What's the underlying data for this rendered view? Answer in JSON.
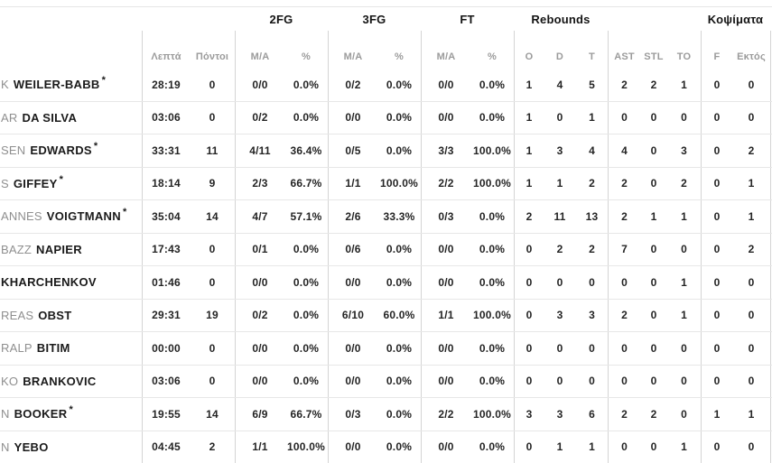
{
  "table": {
    "group_headers": [
      {
        "label": "2FG"
      },
      {
        "label": "3FG"
      },
      {
        "label": "FT"
      },
      {
        "label": "Rebounds"
      },
      {
        "label": "Κοψίματα"
      }
    ],
    "sub_headers": {
      "minutes": "Λεπτά",
      "points": "Πόντοι",
      "fg2_ma": "M/A",
      "fg2_pct": "%",
      "fg3_ma": "M/A",
      "fg3_pct": "%",
      "ft_ma": "M/A",
      "ft_pct": "%",
      "reb_o": "O",
      "reb_d": "D",
      "reb_t": "T",
      "ast": "AST",
      "stl": "STL",
      "to": "TO",
      "f": "F",
      "ektos": "Εκτός"
    },
    "rows": [
      {
        "prefix": "K",
        "surname": "WEILER-BABB",
        "star": "*",
        "min": "28:19",
        "pts": "0",
        "fg2": "0/0",
        "fg2pct": "0.0%",
        "fg3": "0/2",
        "fg3pct": "0.0%",
        "ft": "0/0",
        "ftpct": "0.0%",
        "o": "1",
        "d": "4",
        "t": "5",
        "ast": "2",
        "stl": "2",
        "to": "1",
        "f": "0",
        "ektos": "0"
      },
      {
        "prefix": "AR",
        "surname": "DA SILVA",
        "star": "",
        "min": "03:06",
        "pts": "0",
        "fg2": "0/2",
        "fg2pct": "0.0%",
        "fg3": "0/0",
        "fg3pct": "0.0%",
        "ft": "0/0",
        "ftpct": "0.0%",
        "o": "1",
        "d": "0",
        "t": "1",
        "ast": "0",
        "stl": "0",
        "to": "0",
        "f": "0",
        "ektos": "0"
      },
      {
        "prefix": "SEN",
        "surname": "EDWARDS",
        "star": "*",
        "min": "33:31",
        "pts": "11",
        "fg2": "4/11",
        "fg2pct": "36.4%",
        "fg3": "0/5",
        "fg3pct": "0.0%",
        "ft": "3/3",
        "ftpct": "100.0%",
        "o": "1",
        "d": "3",
        "t": "4",
        "ast": "4",
        "stl": "0",
        "to": "3",
        "f": "0",
        "ektos": "2"
      },
      {
        "prefix": "S",
        "surname": "GIFFEY",
        "star": "*",
        "min": "18:14",
        "pts": "9",
        "fg2": "2/3",
        "fg2pct": "66.7%",
        "fg3": "1/1",
        "fg3pct": "100.0%",
        "ft": "2/2",
        "ftpct": "100.0%",
        "o": "1",
        "d": "1",
        "t": "2",
        "ast": "2",
        "stl": "0",
        "to": "2",
        "f": "0",
        "ektos": "1"
      },
      {
        "prefix": "ANNES",
        "surname": "VOIGTMANN",
        "star": "*",
        "min": "35:04",
        "pts": "14",
        "fg2": "4/7",
        "fg2pct": "57.1%",
        "fg3": "2/6",
        "fg3pct": "33.3%",
        "ft": "0/3",
        "ftpct": "0.0%",
        "o": "2",
        "d": "11",
        "t": "13",
        "ast": "2",
        "stl": "1",
        "to": "1",
        "f": "0",
        "ektos": "1"
      },
      {
        "prefix": "BAZZ",
        "surname": "NAPIER",
        "star": "",
        "min": "17:43",
        "pts": "0",
        "fg2": "0/1",
        "fg2pct": "0.0%",
        "fg3": "0/6",
        "fg3pct": "0.0%",
        "ft": "0/0",
        "ftpct": "0.0%",
        "o": "0",
        "d": "2",
        "t": "2",
        "ast": "7",
        "stl": "0",
        "to": "0",
        "f": "0",
        "ektos": "2"
      },
      {
        "prefix": "",
        "surname": "KHARCHENKOV",
        "star": "",
        "min": "01:46",
        "pts": "0",
        "fg2": "0/0",
        "fg2pct": "0.0%",
        "fg3": "0/0",
        "fg3pct": "0.0%",
        "ft": "0/0",
        "ftpct": "0.0%",
        "o": "0",
        "d": "0",
        "t": "0",
        "ast": "0",
        "stl": "0",
        "to": "1",
        "f": "0",
        "ektos": "0"
      },
      {
        "prefix": "REAS",
        "surname": "OBST",
        "star": "",
        "min": "29:31",
        "pts": "19",
        "fg2": "0/2",
        "fg2pct": "0.0%",
        "fg3": "6/10",
        "fg3pct": "60.0%",
        "ft": "1/1",
        "ftpct": "100.0%",
        "o": "0",
        "d": "3",
        "t": "3",
        "ast": "2",
        "stl": "0",
        "to": "1",
        "f": "0",
        "ektos": "0"
      },
      {
        "prefix": "RALP",
        "surname": "BITIM",
        "star": "",
        "min": "00:00",
        "pts": "0",
        "fg2": "0/0",
        "fg2pct": "0.0%",
        "fg3": "0/0",
        "fg3pct": "0.0%",
        "ft": "0/0",
        "ftpct": "0.0%",
        "o": "0",
        "d": "0",
        "t": "0",
        "ast": "0",
        "stl": "0",
        "to": "0",
        "f": "0",
        "ektos": "0"
      },
      {
        "prefix": "KO",
        "surname": "BRANKOVIC",
        "star": "",
        "min": "03:06",
        "pts": "0",
        "fg2": "0/0",
        "fg2pct": "0.0%",
        "fg3": "0/0",
        "fg3pct": "0.0%",
        "ft": "0/0",
        "ftpct": "0.0%",
        "o": "0",
        "d": "0",
        "t": "0",
        "ast": "0",
        "stl": "0",
        "to": "0",
        "f": "0",
        "ektos": "0"
      },
      {
        "prefix": "N",
        "surname": "BOOKER",
        "star": "*",
        "min": "19:55",
        "pts": "14",
        "fg2": "6/9",
        "fg2pct": "66.7%",
        "fg3": "0/3",
        "fg3pct": "0.0%",
        "ft": "2/2",
        "ftpct": "100.0%",
        "o": "3",
        "d": "3",
        "t": "6",
        "ast": "2",
        "stl": "2",
        "to": "0",
        "f": "1",
        "ektos": "1"
      },
      {
        "prefix": "N",
        "surname": "YEBO",
        "star": "",
        "min": "04:45",
        "pts": "2",
        "fg2": "1/1",
        "fg2pct": "100.0%",
        "fg3": "0/0",
        "fg3pct": "0.0%",
        "ft": "0/0",
        "ftpct": "0.0%",
        "o": "0",
        "d": "1",
        "t": "1",
        "ast": "0",
        "stl": "0",
        "to": "1",
        "f": "0",
        "ektos": "0"
      }
    ]
  }
}
